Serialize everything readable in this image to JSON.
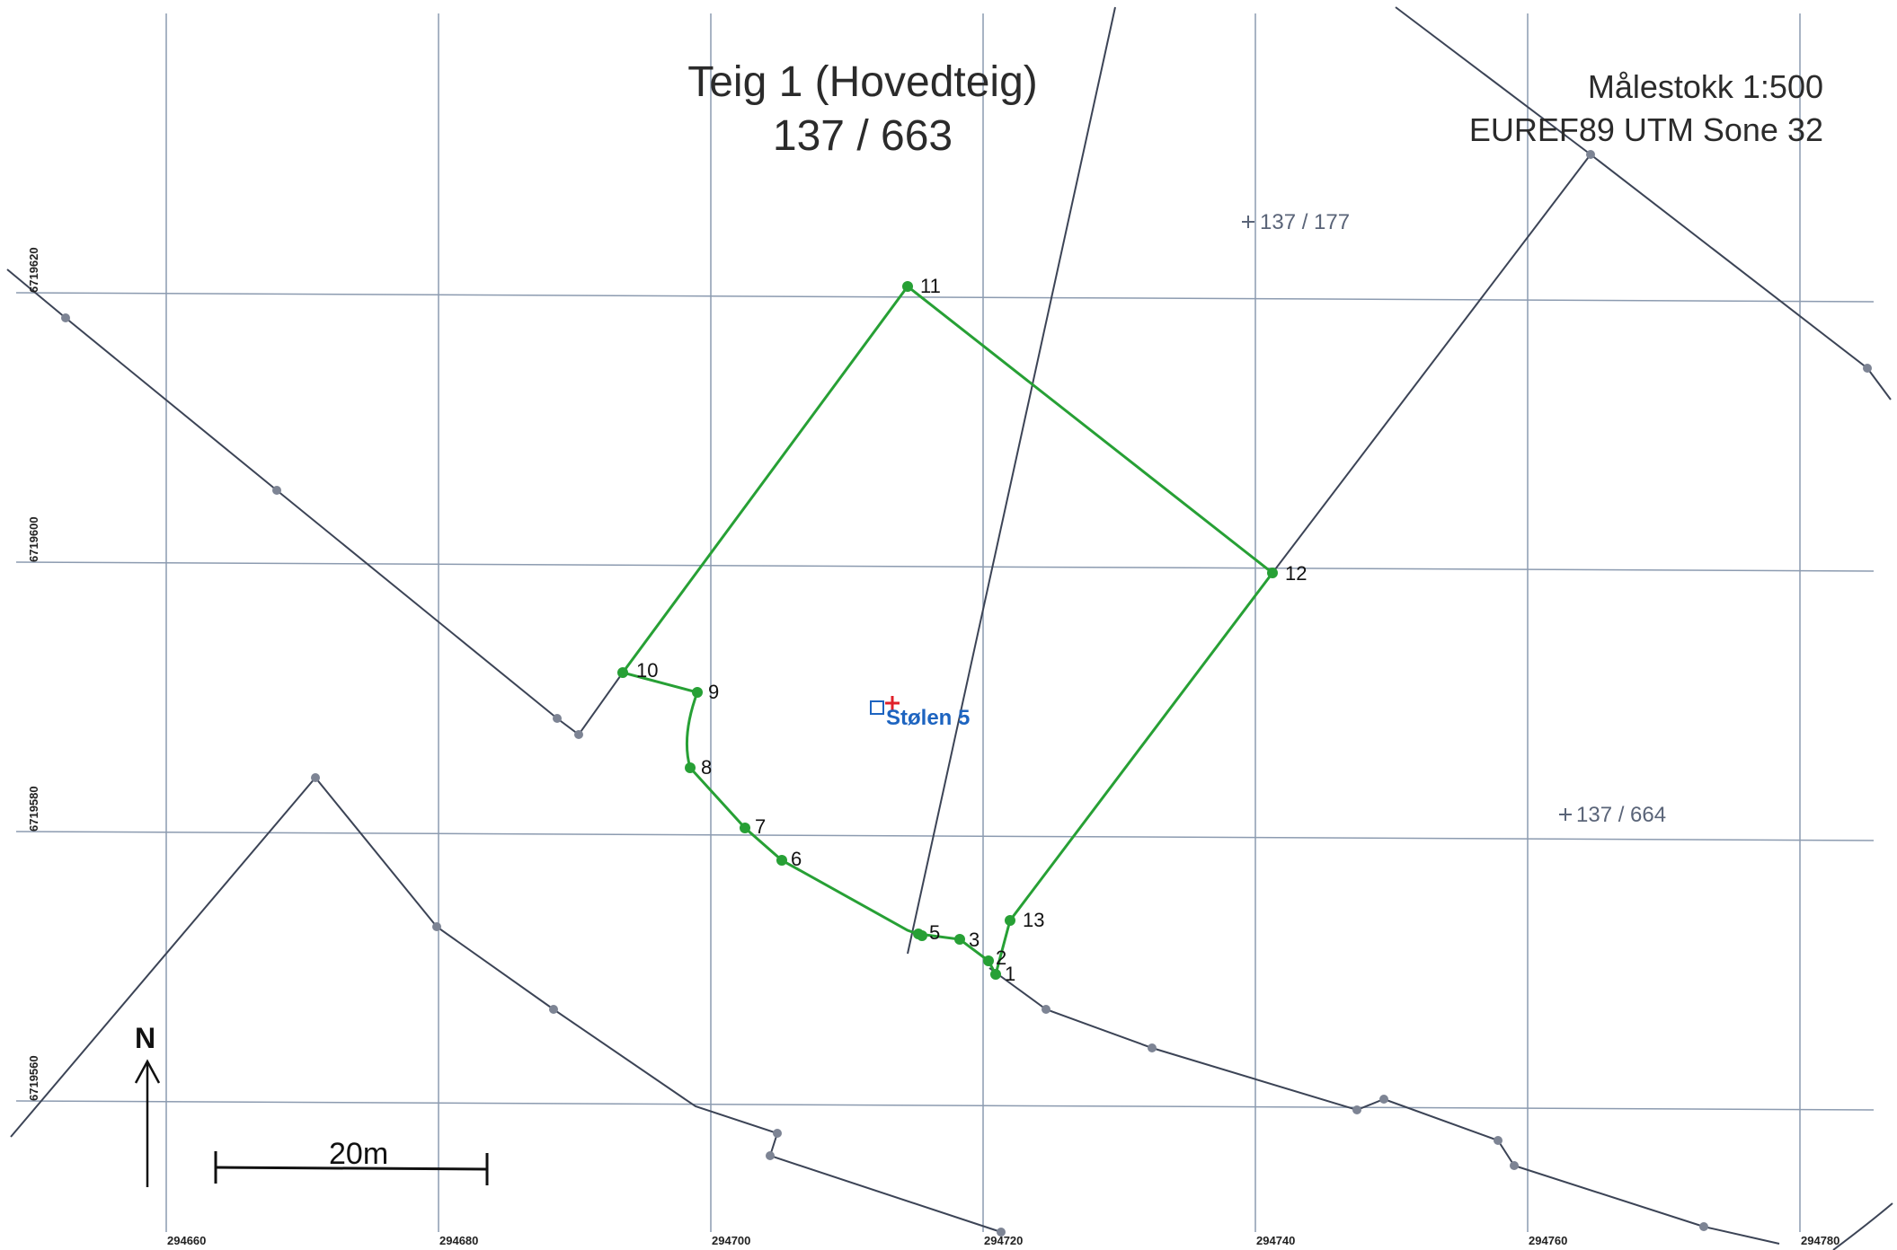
{
  "title": {
    "line1": "Teig 1 (Hovedteig)",
    "line2": "137 / 663"
  },
  "scale_text": "Målestokk 1:500",
  "crs_text": "EUREF89 UTM Sone 32",
  "x_ticks": [
    "294660",
    "294680",
    "294700",
    "294720",
    "294740",
    "294760",
    "294780"
  ],
  "y_ticks": [
    "6719620",
    "6719600",
    "6719580",
    "6719560"
  ],
  "point_labels": [
    "1",
    "2",
    "3",
    "5",
    "6",
    "7",
    "8",
    "9",
    "10",
    "11",
    "12",
    "13"
  ],
  "neighbor_parcels": [
    "137 / 177",
    "137 / 664"
  ],
  "place_name": "Stølen 5",
  "north_label": "N",
  "scalebar_label": "20m",
  "colors": {
    "boundary": "#27a035",
    "neighbor_line": "#3c4456",
    "grid": "#8c9bb0",
    "vertex_grey": "#7d8494",
    "place_text": "#1d64c0",
    "marker_red": "#e0202a"
  }
}
